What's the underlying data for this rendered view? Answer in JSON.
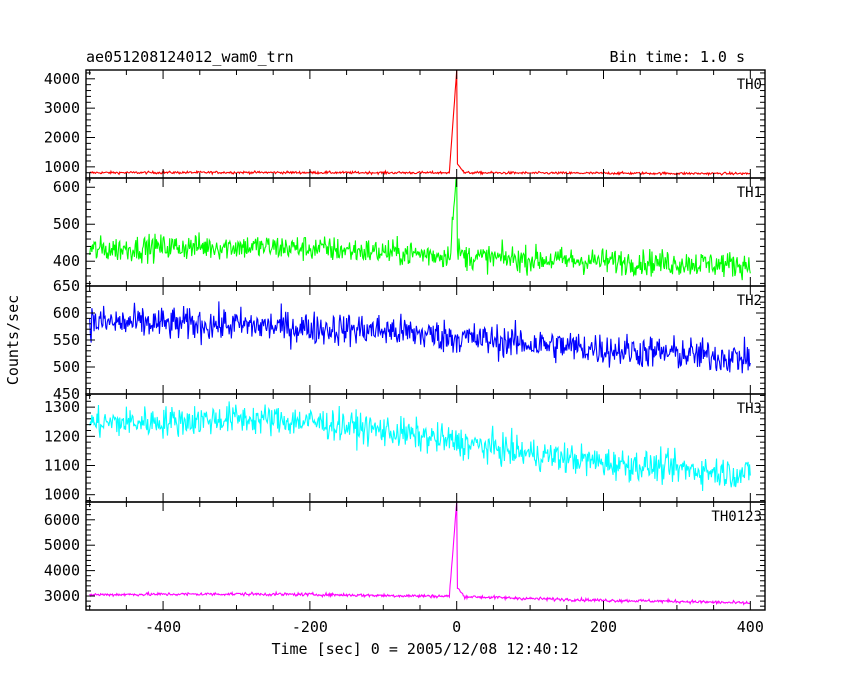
{
  "header": {
    "title": "ae051208124012_wam0_trn",
    "bin_time": "Bin time: 1.0 s"
  },
  "axes": {
    "xlabel": "Time [sec] 0 = 2005/12/08 12:40:12",
    "ylabel": "Counts/sec",
    "xlim": [
      -505,
      420
    ],
    "xticks_major": [
      -400,
      -200,
      0,
      200,
      400
    ],
    "xticks_minor_step": 50
  },
  "chart_data": [
    {
      "type": "line",
      "name": "TH0",
      "color": "#ff0000",
      "ylim": [
        620,
        4300
      ],
      "yticks": [
        1000,
        2000,
        3000,
        4000
      ],
      "x": [
        -500,
        -400,
        -300,
        -200,
        -100,
        -10,
        0,
        2,
        10,
        100,
        200,
        300,
        400
      ],
      "y": [
        800,
        805,
        810,
        805,
        800,
        800,
        4300,
        1100,
        800,
        790,
        785,
        775,
        770
      ],
      "noise": 30
    },
    {
      "type": "line",
      "name": "TH1",
      "color": "#00ff00",
      "ylim": [
        333,
        625
      ],
      "yticks": [
        400,
        500,
        600
      ],
      "x": [
        -500,
        -400,
        -300,
        -200,
        -100,
        -10,
        0,
        2,
        10,
        100,
        200,
        300,
        400
      ],
      "y": [
        430,
        438,
        440,
        435,
        425,
        415,
        625,
        430,
        412,
        405,
        400,
        395,
        390
      ],
      "noise": 25
    },
    {
      "type": "line",
      "name": "TH2",
      "color": "#0000ff",
      "ylim": [
        450,
        650
      ],
      "yticks": [
        450,
        500,
        550,
        600,
        650
      ],
      "x": [
        -500,
        -400,
        -300,
        -200,
        -100,
        0,
        100,
        200,
        300,
        400
      ],
      "y": [
        583,
        580,
        578,
        572,
        568,
        555,
        543,
        533,
        525,
        515
      ],
      "noise": 22
    },
    {
      "type": "line",
      "name": "TH3",
      "color": "#00ffff",
      "ylim": [
        975,
        1345
      ],
      "yticks": [
        1000,
        1100,
        1200,
        1300
      ],
      "x": [
        -500,
        -400,
        -300,
        -200,
        -100,
        0,
        100,
        200,
        300,
        400
      ],
      "y": [
        1245,
        1250,
        1262,
        1250,
        1220,
        1180,
        1140,
        1110,
        1090,
        1070
      ],
      "noise": 38
    },
    {
      "type": "line",
      "name": "TH0123",
      "color": "#ff00ff",
      "ylim": [
        2450,
        6700
      ],
      "yticks": [
        3000,
        4000,
        5000,
        6000
      ],
      "x": [
        -500,
        -400,
        -300,
        -200,
        -100,
        -10,
        0,
        2,
        10,
        100,
        200,
        300,
        400
      ],
      "y": [
        3050,
        3070,
        3080,
        3060,
        3020,
        2990,
        6700,
        3300,
        2980,
        2900,
        2830,
        2790,
        2720
      ],
      "noise": 45
    }
  ]
}
